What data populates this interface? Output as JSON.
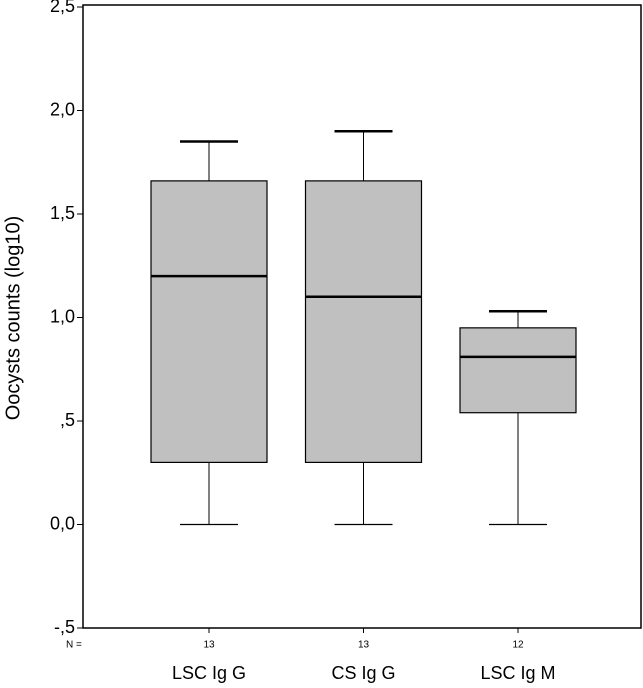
{
  "chart_data": {
    "type": "box",
    "y_label": "Oocysts counts (log10)",
    "categories": [
      "LSC Ig G",
      "CS Ig G",
      "LSC Ig M"
    ],
    "boxes": [
      {
        "min": 0,
        "q1": 0.3,
        "median": 1.2,
        "q3": 1.66,
        "max": 1.85
      },
      {
        "min": 0,
        "q1": 0.3,
        "median": 1.1,
        "q3": 1.66,
        "max": 1.9
      },
      {
        "min": 0,
        "q1": 0.54,
        "median": 0.81,
        "q3": 0.95,
        "max": 1.03
      }
    ],
    "n_label": "N =",
    "n": [
      13,
      13,
      12
    ],
    "color": "#c0c0c0",
    "ylim": [
      -0.5,
      2.5
    ],
    "yticks": [
      {
        "value": -0.5,
        "label": "-,5"
      },
      {
        "value": 0,
        "label": "0,0"
      },
      {
        "value": 0.5,
        "label": ",5"
      },
      {
        "value": 1,
        "label": "1,0"
      },
      {
        "value": 1.5,
        "label": "1,5"
      },
      {
        "value": 2,
        "label": "2,0"
      },
      {
        "value": 2.5,
        "label": "2,5"
      }
    ]
  }
}
